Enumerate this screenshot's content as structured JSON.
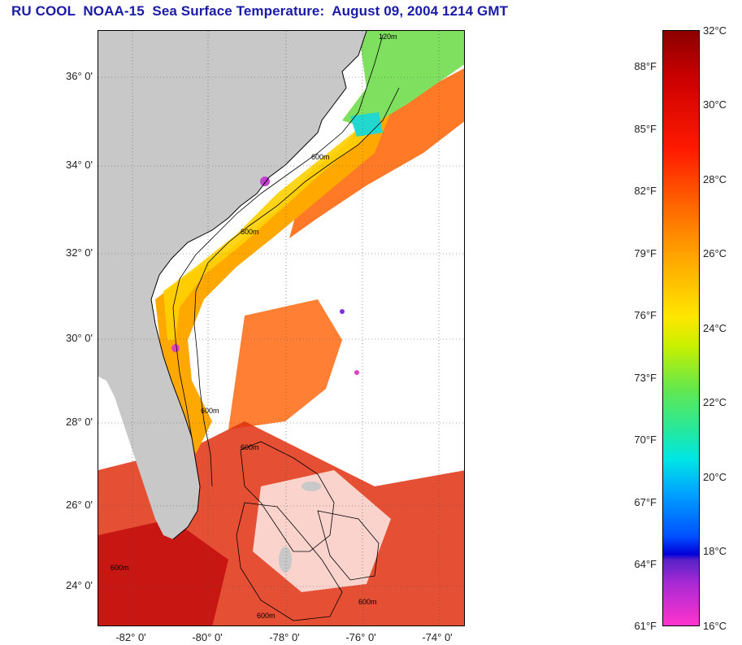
{
  "title": "RU COOL  NOAA-15  Sea Surface Temperature:  August 09, 2004 1214 GMT",
  "map": {
    "lat_labels": [
      "36° 0'",
      "34° 0'",
      "32° 0'",
      "30° 0'",
      "28° 0'",
      "26° 0'",
      "24° 0'"
    ],
    "lon_labels": [
      "-82° 0'",
      "-80° 0'",
      "-78° 0'",
      "-76° 0'",
      "-74° 0'"
    ],
    "contour_labels": [
      "120m",
      "600m",
      "600m",
      "600m",
      "600m",
      "600m",
      "600m",
      "600m"
    ],
    "colors": {
      "land": "#c8c8c8",
      "cloud": "#ffffff",
      "gulf_stream": "#ff6a10",
      "shelf_warm": "#ffa800",
      "near_coast": "#ffd000",
      "cool_water": "#7fe060",
      "deep_red": "#cc1a10"
    }
  },
  "colorbar": {
    "fahrenheit": [
      "88°F",
      "85°F",
      "82°F",
      "79°F",
      "76°F",
      "73°F",
      "70°F",
      "67°F",
      "64°F",
      "61°F"
    ],
    "celsius": [
      "32°C",
      "30°C",
      "28°C",
      "26°C",
      "24°C",
      "22°C",
      "20°C",
      "18°C",
      "16°C"
    ],
    "range_c": [
      16,
      32
    ]
  }
}
